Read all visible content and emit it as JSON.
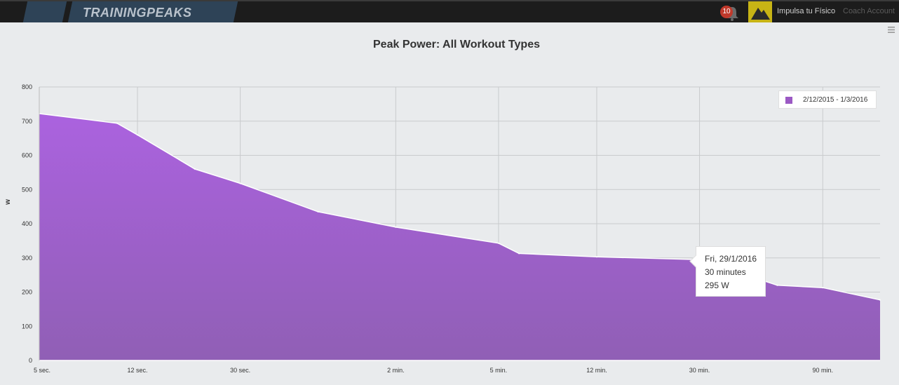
{
  "header": {
    "logo_text": "TRAININGPEAKS",
    "notification_count": "10",
    "user_name": "Impulsa tu Físico",
    "coach_account": "Coach Account"
  },
  "colors": {
    "area_top": "#ab62df",
    "area_bottom": "#905fb5",
    "legend_swatch": "#9b59c4",
    "header_bg": "#1c1c1c"
  },
  "chart_data": {
    "type": "area",
    "title": "Peak Power: All Workout Types",
    "ylabel": "w",
    "xlabel": "",
    "ylim": [
      0,
      800
    ],
    "y_ticks": [
      0,
      100,
      200,
      300,
      400,
      500,
      600,
      700,
      800
    ],
    "x_tick_labels": [
      "5 sec.",
      "12 sec.",
      "30 sec.",
      "2 min.",
      "5 min.",
      "12 min.",
      "30 min.",
      "90 min."
    ],
    "x_tick_seconds": [
      5,
      12,
      30,
      120,
      300,
      720,
      1800,
      5400
    ],
    "xlim_seconds": [
      5,
      9000
    ],
    "grid": true,
    "legend_position": "top-right",
    "series": [
      {
        "name": "2/12/2015 - 1/3/2016",
        "x_seconds": [
          5,
          10,
          12,
          20,
          30,
          60,
          120,
          300,
          360,
          720,
          1800,
          3600,
          5400,
          9000
        ],
        "values": [
          722,
          694,
          660,
          560,
          518,
          435,
          390,
          343,
          313,
          303,
          295,
          220,
          213,
          177
        ]
      }
    ],
    "tooltip": {
      "date": "Fri, 29/1/2016",
      "duration": "30 minutes",
      "value": "295 W",
      "x_seconds": 1800,
      "y": 295
    }
  }
}
